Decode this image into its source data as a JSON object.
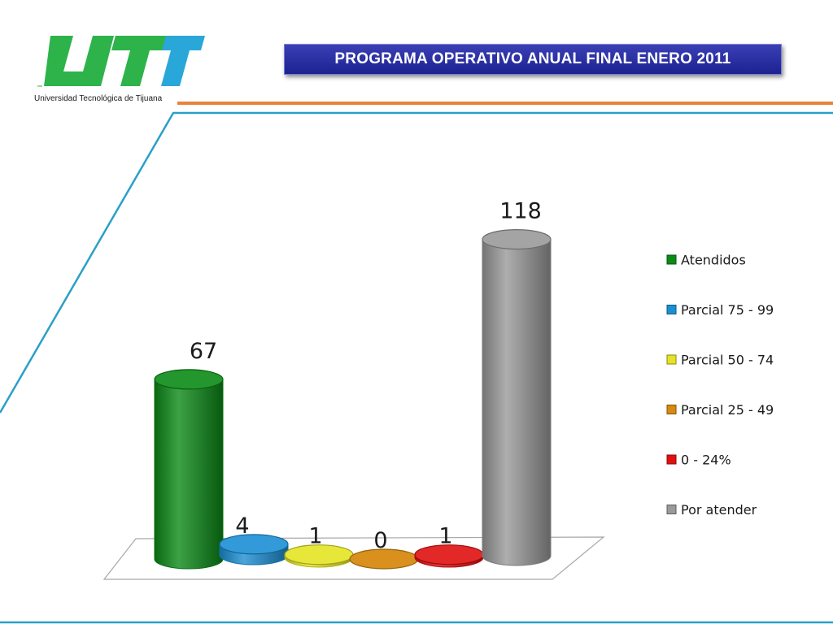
{
  "header": {
    "logo_text": "UTT",
    "logo_subtitle": "Universidad Tecnológica de Tijuana",
    "title": "PROGRAMA OPERATIVO ANUAL FINAL ENERO 2011"
  },
  "colors": {
    "logo_green": "#2db34a",
    "logo_blue": "#2aa7d9",
    "title_bg": "#2a2fa6",
    "accent_orange": "#e8843a",
    "frame_blue": "#2aa0c8"
  },
  "chart_data": {
    "type": "bar",
    "style": "3d-cylinder",
    "categories": [
      "Atendidos",
      "Parcial 75 - 99",
      "Parcial 50 - 74",
      "Parcial 25 - 49",
      "0 - 24%",
      "Por atender"
    ],
    "values": [
      67,
      4,
      1,
      0,
      1,
      118
    ],
    "value_labels": [
      "67",
      "4",
      "1",
      "0",
      "1",
      "118"
    ],
    "colors": [
      "#0b8a17",
      "#1b8fd4",
      "#e4e424",
      "#d78a10",
      "#e01010",
      "#9a9a9a"
    ],
    "legend": {
      "placement": "right",
      "entries": [
        "Atendidos",
        "Parcial 75 - 99",
        "Parcial 50 - 74",
        "Parcial 25 - 49",
        "0 - 24%",
        "Por atender"
      ]
    },
    "ylim": [
      0,
      118
    ],
    "grid": false
  }
}
